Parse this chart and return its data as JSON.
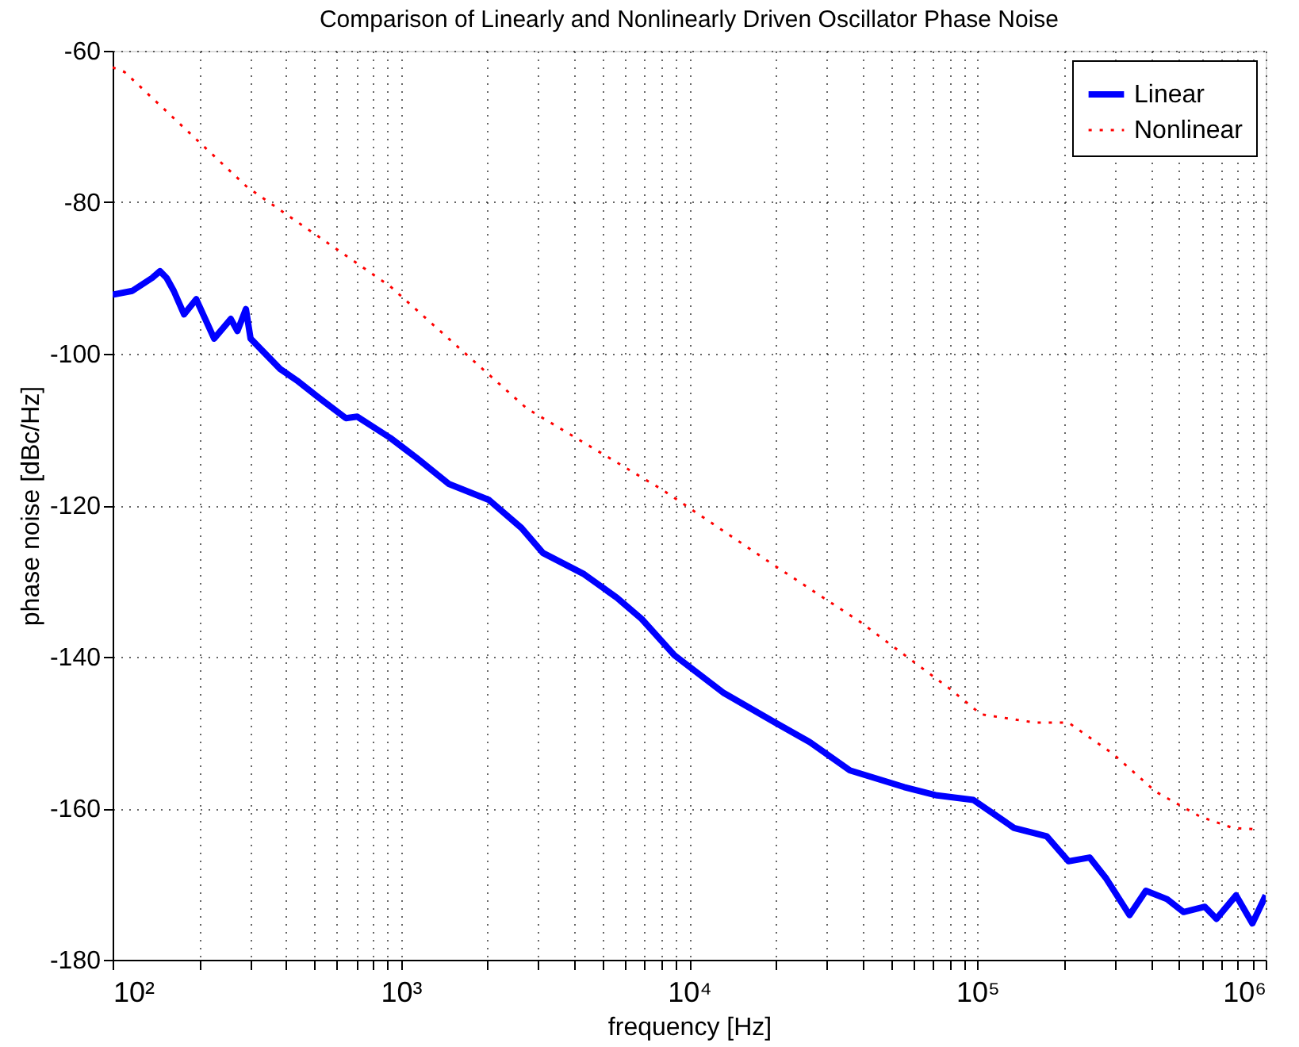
{
  "chart_data": {
    "type": "line",
    "title": "Comparison of Linearly and Nonlinearly Driven Oscillator Phase Noise",
    "xlabel": "frequency [Hz]",
    "ylabel": "phase noise [dBc/Hz]",
    "log": "x",
    "grid": true,
    "legend": "top right",
    "xlim": [
      100,
      1000000
    ],
    "ylim": [
      -180,
      -60
    ],
    "xticks": [
      {
        "value": 100,
        "label": "10²"
      },
      {
        "value": 200,
        "label": null
      },
      {
        "value": 300,
        "label": null
      },
      {
        "value": 400,
        "label": null
      },
      {
        "value": 500,
        "label": null
      },
      {
        "value": 600,
        "label": null
      },
      {
        "value": 700,
        "label": null
      },
      {
        "value": 800,
        "label": null
      },
      {
        "value": 900,
        "label": null
      },
      {
        "value": 1000,
        "label": "10³"
      },
      {
        "value": 2000,
        "label": null
      },
      {
        "value": 3000,
        "label": null
      },
      {
        "value": 4000,
        "label": null
      },
      {
        "value": 5000,
        "label": null
      },
      {
        "value": 6000,
        "label": null
      },
      {
        "value": 7000,
        "label": null
      },
      {
        "value": 8000,
        "label": null
      },
      {
        "value": 9000,
        "label": null
      },
      {
        "value": 10000,
        "label": "10⁴"
      },
      {
        "value": 20000,
        "label": null
      },
      {
        "value": 30000,
        "label": null
      },
      {
        "value": 40000,
        "label": null
      },
      {
        "value": 50000,
        "label": null
      },
      {
        "value": 60000,
        "label": null
      },
      {
        "value": 70000,
        "label": null
      },
      {
        "value": 80000,
        "label": null
      },
      {
        "value": 90000,
        "label": null
      },
      {
        "value": 100000,
        "label": "10⁵"
      },
      {
        "value": 200000,
        "label": null
      },
      {
        "value": 300000,
        "label": null
      },
      {
        "value": 400000,
        "label": null
      },
      {
        "value": 500000,
        "label": null
      },
      {
        "value": 600000,
        "label": null
      },
      {
        "value": 700000,
        "label": null
      },
      {
        "value": 800000,
        "label": null
      },
      {
        "value": 900000,
        "label": null
      },
      {
        "value": 1000000,
        "label": "10⁶"
      }
    ],
    "yticks": [
      -180,
      -160,
      -140,
      -120,
      -100,
      -80,
      -60
    ],
    "series": [
      {
        "name": "Linear",
        "color": "#0000ff",
        "line_style": "solid",
        "x": [
          100,
          117,
          137,
          146,
          154,
          163,
          177,
          195,
          225,
          257,
          271,
          290,
          301,
          381,
          435,
          515,
          644,
          706,
          918,
          1130,
          1470,
          2020,
          2620,
          3110,
          4320,
          5610,
          6840,
          8890,
          13200,
          19500,
          26300,
          36100,
          55700,
          72400,
          96800,
          134000,
          174000,
          207000,
          245000,
          280000,
          337000,
          384000,
          455000,
          519000,
          615000,
          675000,
          789000,
          899000,
          1000000
        ],
        "values": [
          -92.2,
          -91.7,
          -90,
          -89.1,
          -90,
          -91.7,
          -94.8,
          -92.8,
          -98,
          -95.4,
          -97,
          -94.1,
          -98,
          -102,
          -103.5,
          -105.7,
          -108.5,
          -108.3,
          -111.1,
          -113.7,
          -117.2,
          -119.3,
          -123,
          -126.3,
          -129.1,
          -132.2,
          -135,
          -139.8,
          -144.8,
          -148.5,
          -151.3,
          -155,
          -157.2,
          -158.3,
          -158.9,
          -162.6,
          -163.7,
          -167,
          -166.5,
          -169.3,
          -174.1,
          -170.9,
          -172,
          -173.7,
          -173,
          -174.6,
          -171.5,
          -175.2,
          -171.5
        ]
      },
      {
        "name": "Nonlinear",
        "color": "#ff0000",
        "line_style": "dotted",
        "x": [
          100,
          110,
          293,
          918,
          2730,
          8110,
          19500,
          39200,
          79400,
          103000,
          159000,
          207000,
          295000,
          415000,
          592000,
          769000,
          938000
        ],
        "values": [
          -62.2,
          -62.8,
          -78,
          -91.1,
          -107.2,
          -118,
          -127.8,
          -135.4,
          -144.1,
          -147.6,
          -148.7,
          -148.7,
          -152.8,
          -157.8,
          -161.1,
          -162.6,
          -162.8
        ]
      }
    ]
  }
}
